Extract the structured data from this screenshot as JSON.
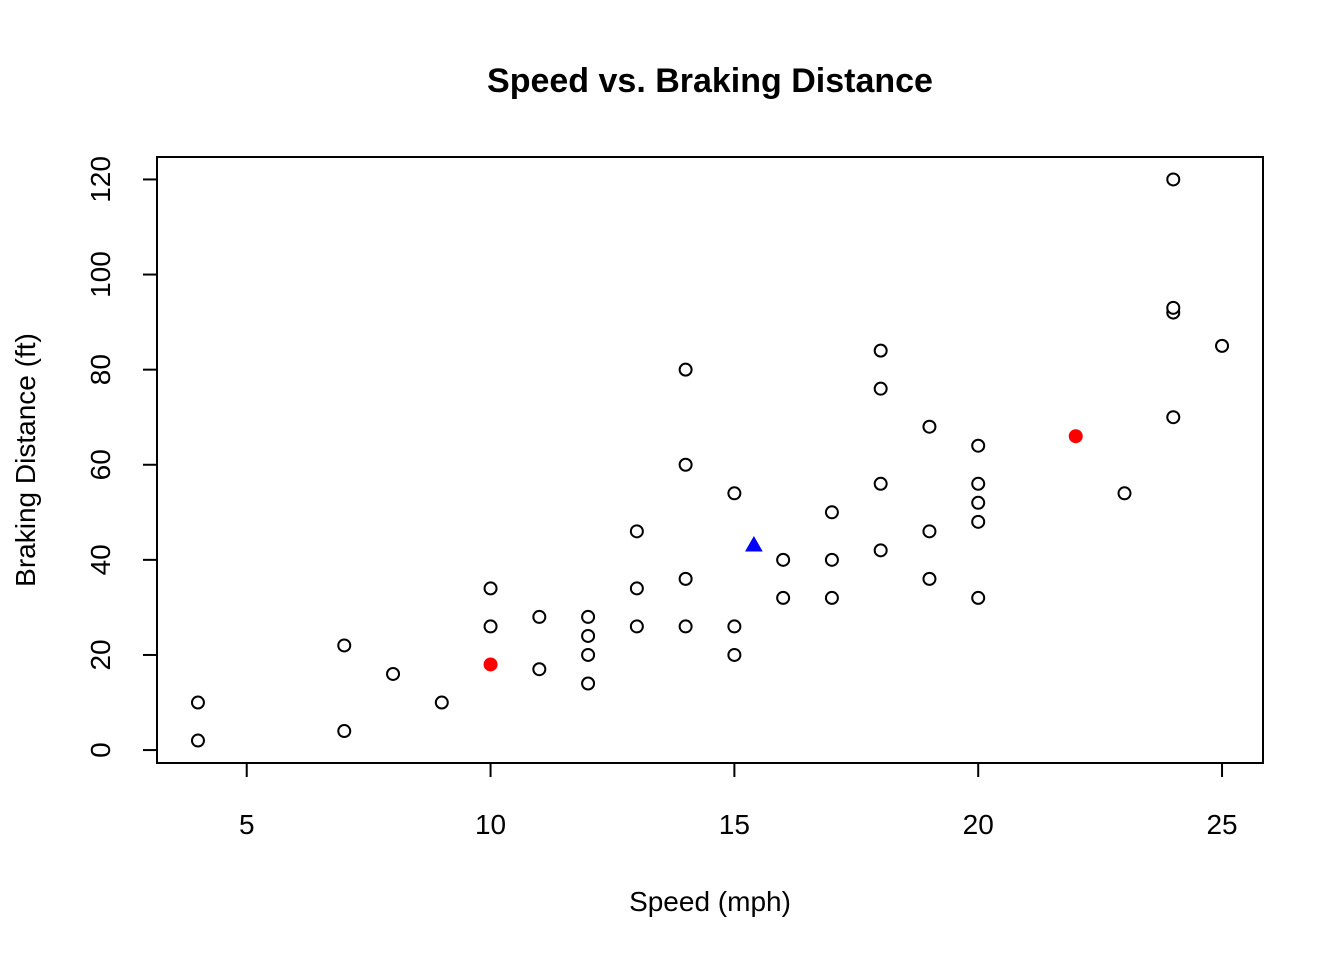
{
  "chart_data": {
    "type": "scatter",
    "title": "Speed vs. Braking Distance",
    "xlabel": "Speed (mph)",
    "ylabel": "Braking Distance (ft)",
    "xlim": [
      3.16,
      25.84
    ],
    "ylim": [
      -2.72,
      124.72
    ],
    "xticks": [
      5,
      10,
      15,
      20,
      25
    ],
    "yticks": [
      0,
      20,
      40,
      60,
      80,
      100,
      120
    ],
    "grid": false,
    "legend": "none",
    "series": [
      {
        "marker": "open-circle",
        "color": "#000000",
        "points": [
          [
            4,
            2
          ],
          [
            4,
            10
          ],
          [
            7,
            4
          ],
          [
            7,
            22
          ],
          [
            8,
            16
          ],
          [
            9,
            10
          ],
          [
            10,
            26
          ],
          [
            10,
            34
          ],
          [
            11,
            17
          ],
          [
            11,
            28
          ],
          [
            12,
            14
          ],
          [
            12,
            20
          ],
          [
            12,
            24
          ],
          [
            12,
            28
          ],
          [
            13,
            26
          ],
          [
            13,
            34
          ],
          [
            13,
            46
          ],
          [
            14,
            26
          ],
          [
            14,
            36
          ],
          [
            14,
            60
          ],
          [
            14,
            80
          ],
          [
            15,
            20
          ],
          [
            15,
            26
          ],
          [
            15,
            54
          ],
          [
            16,
            32
          ],
          [
            16,
            40
          ],
          [
            17,
            32
          ],
          [
            17,
            40
          ],
          [
            17,
            50
          ],
          [
            18,
            42
          ],
          [
            18,
            56
          ],
          [
            18,
            76
          ],
          [
            18,
            84
          ],
          [
            19,
            36
          ],
          [
            19,
            46
          ],
          [
            19,
            68
          ],
          [
            20,
            32
          ],
          [
            20,
            48
          ],
          [
            20,
            52
          ],
          [
            20,
            56
          ],
          [
            20,
            64
          ],
          [
            23,
            54
          ],
          [
            24,
            70
          ],
          [
            24,
            92
          ],
          [
            24,
            93
          ],
          [
            24,
            120
          ],
          [
            25,
            85
          ]
        ]
      },
      {
        "marker": "filled-circle",
        "color": "#ff0000",
        "points": [
          [
            10,
            18
          ],
          [
            22,
            66
          ]
        ]
      },
      {
        "marker": "filled-triangle",
        "color": "#0000ff",
        "points": [
          [
            15.4,
            42.98
          ]
        ]
      }
    ]
  }
}
